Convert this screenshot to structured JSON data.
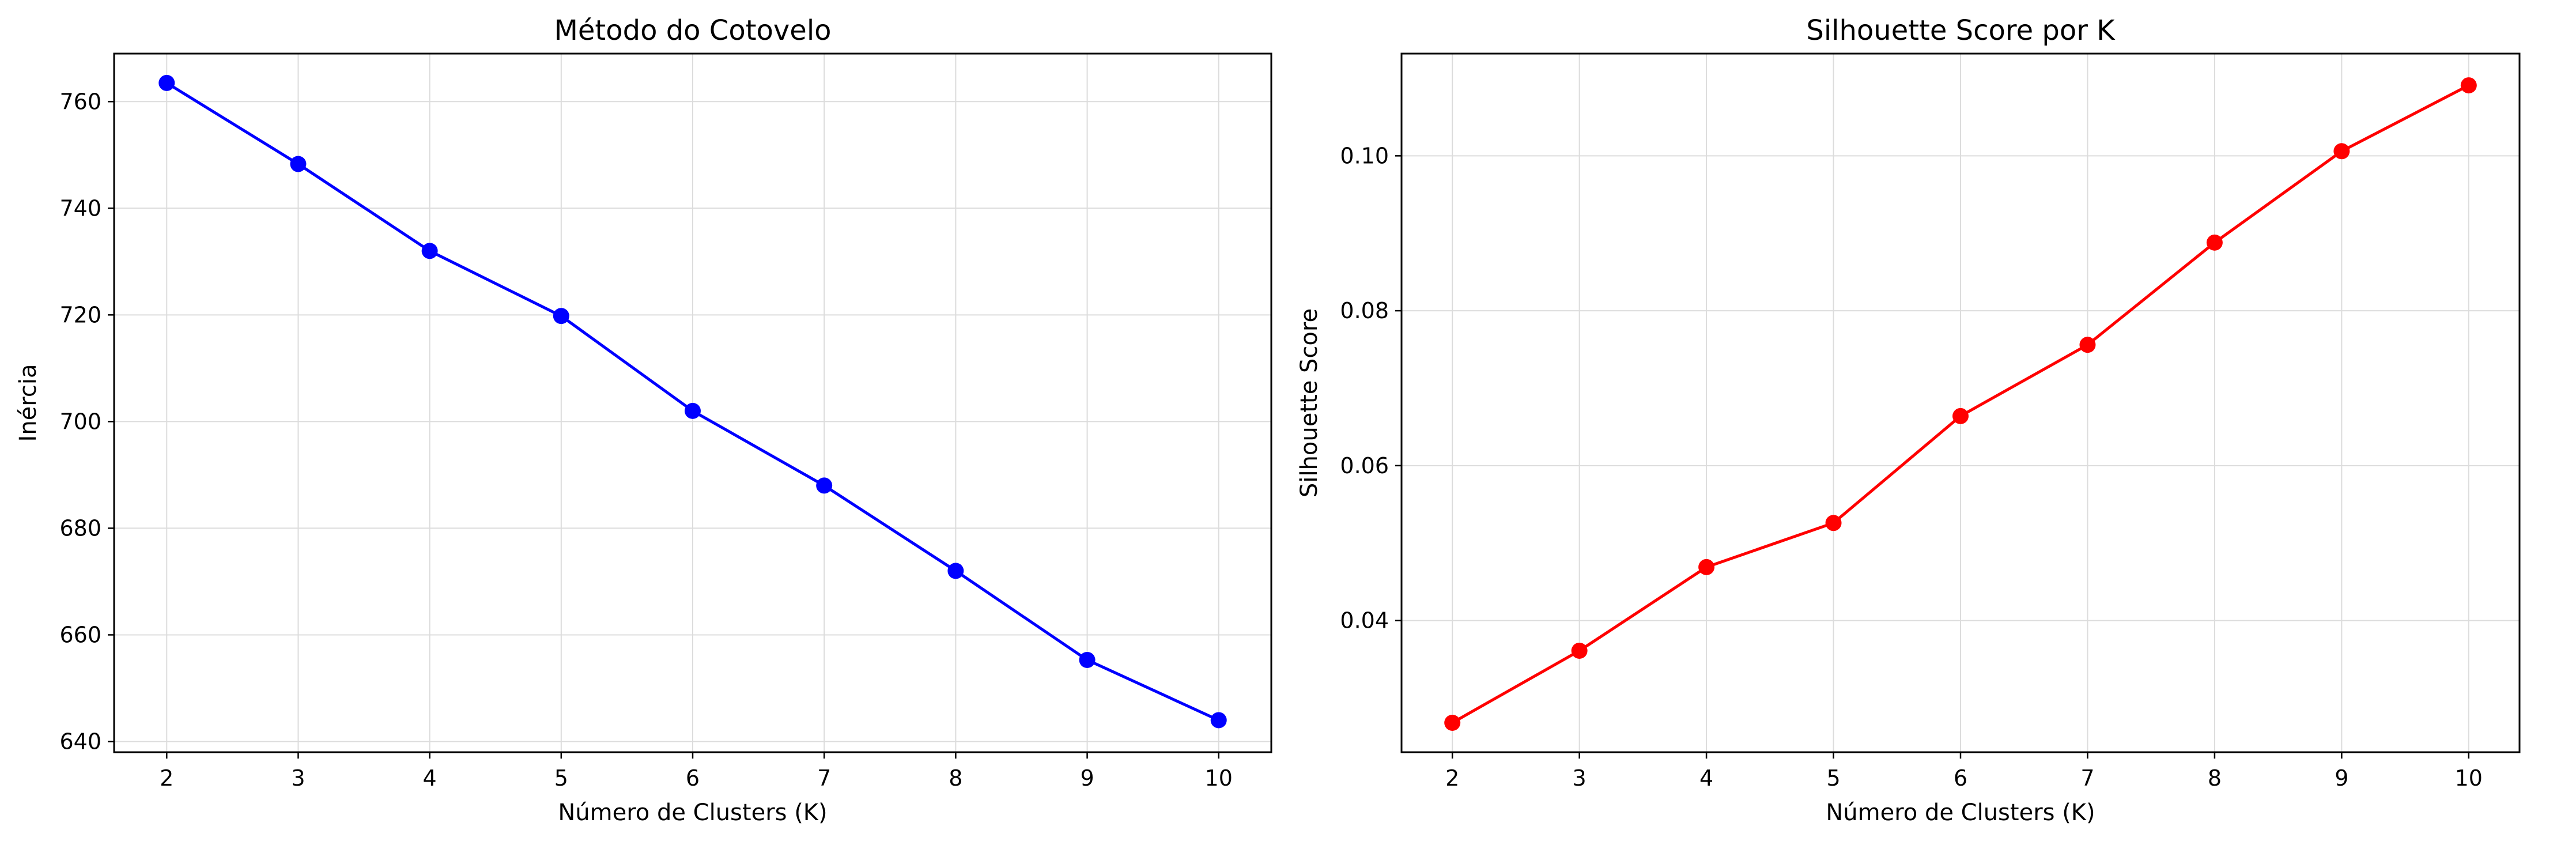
{
  "chart_data": [
    {
      "type": "line",
      "title": "Método do Cotovelo",
      "xlabel": "Número de Clusters (K)",
      "ylabel": "Inércia",
      "x": [
        2,
        3,
        4,
        5,
        6,
        7,
        8,
        9,
        10
      ],
      "series": [
        {
          "values": [
            763.5,
            748.3,
            732.0,
            719.8,
            702.0,
            688.0,
            672.0,
            655.3,
            644.0
          ],
          "color": "#0000ff",
          "marker": "circle"
        }
      ],
      "xlim": [
        1.6,
        10.4
      ],
      "ylim": [
        638.0,
        769.0
      ],
      "xticks": [
        2,
        3,
        4,
        5,
        6,
        7,
        8,
        9,
        10
      ],
      "yticks": [
        640,
        660,
        680,
        700,
        720,
        740,
        760
      ],
      "ytick_labels": [
        "640",
        "660",
        "680",
        "700",
        "720",
        "740",
        "760"
      ],
      "grid": true
    },
    {
      "type": "line",
      "title": "Silhouette Score por K",
      "xlabel": "Número de Clusters (K)",
      "ylabel": "Silhouette Score",
      "x": [
        2,
        3,
        4,
        5,
        6,
        7,
        8,
        9,
        10
      ],
      "series": [
        {
          "values": [
            0.0268,
            0.0361,
            0.0469,
            0.0526,
            0.0664,
            0.0756,
            0.0888,
            0.1006,
            0.1091
          ],
          "color": "#ff0000",
          "marker": "circle"
        }
      ],
      "xlim": [
        1.6,
        10.4
      ],
      "ylim": [
        0.023,
        0.1132
      ],
      "xticks": [
        2,
        3,
        4,
        5,
        6,
        7,
        8,
        9,
        10
      ],
      "yticks": [
        0.04,
        0.06,
        0.08,
        0.1
      ],
      "ytick_labels": [
        "0.04",
        "0.06",
        "0.08",
        "0.10"
      ],
      "grid": true
    }
  ]
}
